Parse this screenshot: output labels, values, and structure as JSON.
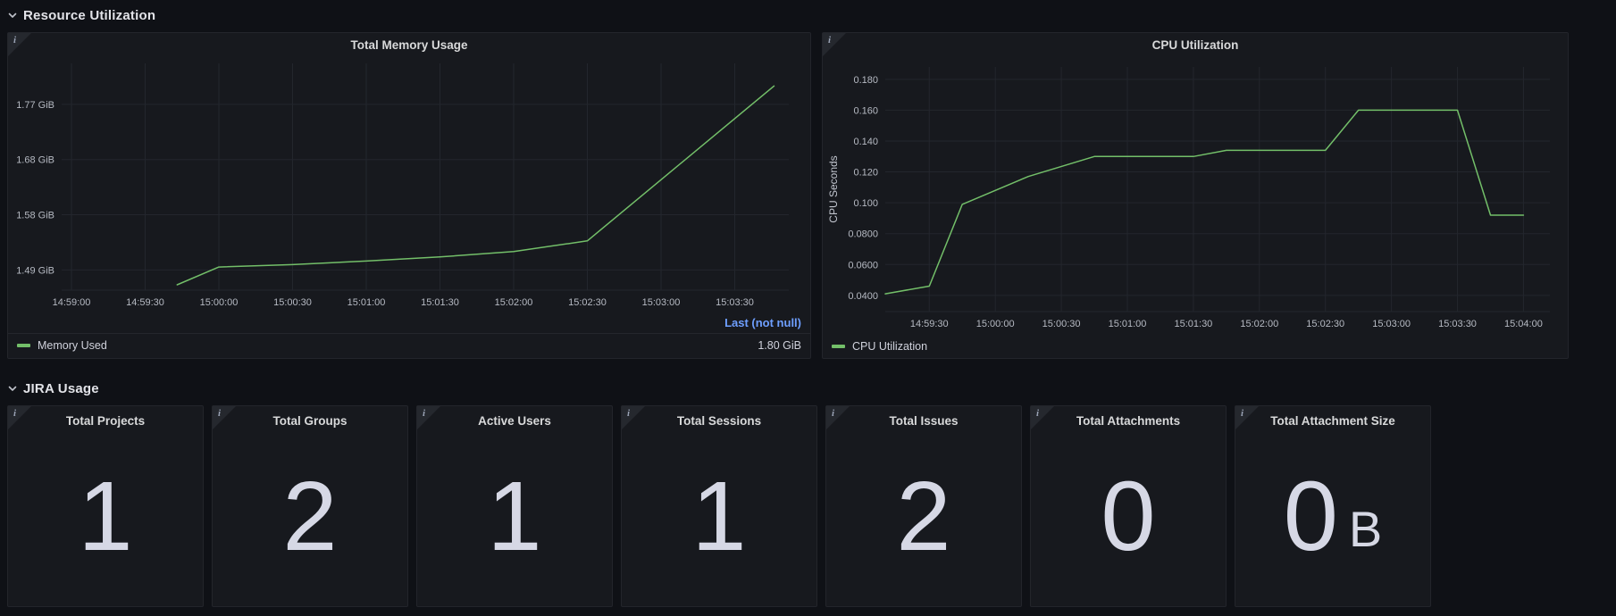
{
  "colors": {
    "green": "#73BF69",
    "link_blue": "#6E9FFF",
    "stat_text": "#D6D8E5",
    "panel_bg": "#17191E",
    "page_bg": "#0F1116"
  },
  "sections": {
    "resource": "Resource Utilization",
    "jira": "JIRA Usage"
  },
  "chart_data": [
    {
      "type": "line",
      "title": "Total Memory Usage",
      "xlabel": "",
      "ylabel": "",
      "grid": true,
      "legend_position": "bottom",
      "xlim": [
        "14:58:56",
        "15:03:52"
      ],
      "ylim": [
        1.456,
        1.838
      ],
      "xticks": [
        "14:59:00",
        "14:59:30",
        "15:00:00",
        "15:00:30",
        "15:01:00",
        "15:01:30",
        "15:02:00",
        "15:02:30",
        "15:03:00",
        "15:03:30"
      ],
      "yticks": [
        {
          "value": 1.49,
          "label": "1.49 GiB"
        },
        {
          "value": 1.583,
          "label": "1.58 GiB"
        },
        {
          "value": 1.676,
          "label": "1.68 GiB"
        },
        {
          "value": 1.769,
          "label": "1.77 GiB"
        }
      ],
      "series": [
        {
          "name": "Memory Used",
          "color": "#73BF69",
          "points": [
            [
              "14:59:43",
              1.465
            ],
            [
              "15:00:00",
              1.495
            ],
            [
              "15:00:30",
              1.499
            ],
            [
              "15:01:00",
              1.505
            ],
            [
              "15:01:30",
              1.512
            ],
            [
              "15:02:00",
              1.521
            ],
            [
              "15:02:30",
              1.539
            ],
            [
              "15:03:00",
              1.642
            ],
            [
              "15:03:46",
              1.8
            ]
          ]
        }
      ],
      "legend": {
        "header": "Last (not null)",
        "rows": [
          {
            "name": "Memory Used",
            "value": "1.80 GiB"
          }
        ]
      }
    },
    {
      "type": "line",
      "title": "CPU Utilization",
      "xlabel": "",
      "ylabel": "CPU Seconds",
      "grid": true,
      "legend_position": "bottom",
      "xlim": [
        "14:59:10",
        "15:04:12"
      ],
      "ylim": [
        0.0295,
        0.188
      ],
      "xticks": [
        "14:59:30",
        "15:00:00",
        "15:00:30",
        "15:01:00",
        "15:01:30",
        "15:02:00",
        "15:02:30",
        "15:03:00",
        "15:03:30",
        "15:04:00"
      ],
      "yticks": [
        {
          "value": 0.04,
          "label": "0.0400"
        },
        {
          "value": 0.06,
          "label": "0.0600"
        },
        {
          "value": 0.08,
          "label": "0.0800"
        },
        {
          "value": 0.1,
          "label": "0.100"
        },
        {
          "value": 0.12,
          "label": "0.120"
        },
        {
          "value": 0.14,
          "label": "0.140"
        },
        {
          "value": 0.16,
          "label": "0.160"
        },
        {
          "value": 0.18,
          "label": "0.180"
        }
      ],
      "series": [
        {
          "name": "CPU Utilization",
          "color": "#73BF69",
          "points": [
            [
              "14:59:10",
              0.041
            ],
            [
              "14:59:30",
              0.046
            ],
            [
              "14:59:45",
              0.099
            ],
            [
              "15:00:15",
              0.117
            ],
            [
              "15:00:45",
              0.13
            ],
            [
              "15:01:30",
              0.13
            ],
            [
              "15:01:45",
              0.134
            ],
            [
              "15:02:30",
              0.134
            ],
            [
              "15:02:45",
              0.16
            ],
            [
              "15:03:30",
              0.16
            ],
            [
              "15:03:45",
              0.092
            ],
            [
              "15:04:00",
              0.092
            ]
          ]
        }
      ],
      "legend": {
        "rows": [
          {
            "name": "CPU Utilization"
          }
        ]
      }
    }
  ],
  "stats": [
    {
      "title": "Total Projects",
      "value": "1",
      "unit": ""
    },
    {
      "title": "Total Groups",
      "value": "2",
      "unit": ""
    },
    {
      "title": "Active Users",
      "value": "1",
      "unit": ""
    },
    {
      "title": "Total Sessions",
      "value": "1",
      "unit": ""
    },
    {
      "title": "Total Issues",
      "value": "2",
      "unit": ""
    },
    {
      "title": "Total Attachments",
      "value": "0",
      "unit": ""
    },
    {
      "title": "Total Attachment Size",
      "value": "0",
      "unit": "B"
    }
  ]
}
